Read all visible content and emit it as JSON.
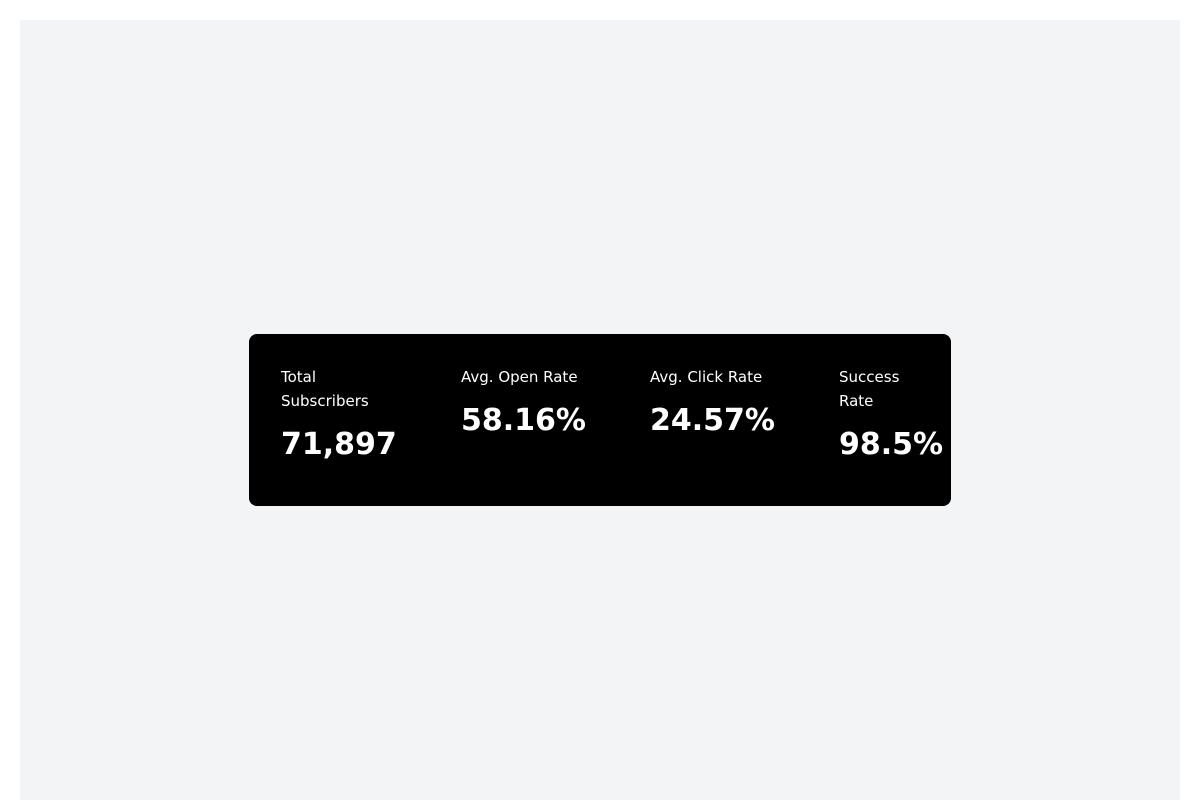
{
  "stats": [
    {
      "label": "Total Subscribers",
      "value": "71,897"
    },
    {
      "label": "Avg. Open Rate",
      "value": "58.16%"
    },
    {
      "label": "Avg. Click Rate",
      "value": "24.57%"
    },
    {
      "label": "Success Rate",
      "value": "98.5%"
    }
  ],
  "colors": {
    "card_background": "#000000",
    "text": "#ffffff",
    "page_background": "#f3f4f6"
  }
}
